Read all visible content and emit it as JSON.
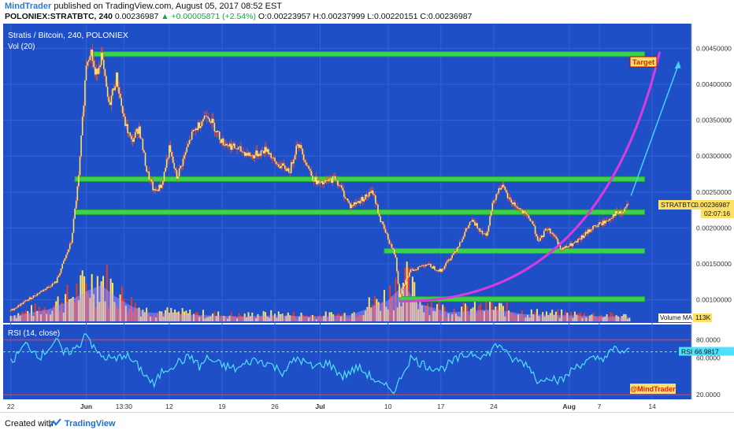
{
  "header": {
    "author": "MindTrader",
    "published": "published on TradingView.com, August 05, 2017 08:52 EST",
    "symbol_line": "POLONIEX:STRATBTC, 240",
    "last": "0.00236987",
    "change": "+0.00005871 (+2.54%)",
    "ohlc": "O:0.00223957 H:0.00237999 L:0.00220151 C:0.00236987"
  },
  "chart_data": {
    "type": "candlestick",
    "title": "Stratis / Bitcoin, 240, POLONIEX",
    "volume_label": "Vol (20)",
    "price_axis": {
      "ylim": [
        0.0007,
        0.0048
      ],
      "ticks": [
        "0.00450000",
        "0.00400000",
        "0.00350000",
        "0.00300000",
        "0.00250000",
        "0.00200000",
        "0.00150000",
        "0.00100000"
      ],
      "tick_values": [
        0.0045,
        0.004,
        0.0035,
        0.003,
        0.0025,
        0.002,
        0.0015,
        0.001
      ]
    },
    "x_axis": {
      "ticks": [
        "22",
        "Jun",
        "13:30",
        "12",
        "19",
        "26",
        "Jul",
        "10",
        "17",
        "24",
        "Aug",
        "7",
        "14"
      ],
      "tick_days": [
        0,
        10,
        15,
        21,
        28,
        35,
        41,
        50,
        57,
        64,
        74,
        78,
        85
      ]
    },
    "price_path": [
      [
        0,
        0.00085
      ],
      [
        3,
        0.00105
      ],
      [
        6,
        0.00125
      ],
      [
        8,
        0.0018
      ],
      [
        9,
        0.0027
      ],
      [
        10,
        0.0043
      ],
      [
        10.6,
        0.0045
      ],
      [
        11.2,
        0.0041
      ],
      [
        12,
        0.0044
      ],
      [
        13,
        0.0037
      ],
      [
        14,
        0.0041
      ],
      [
        15,
        0.0035
      ],
      [
        16,
        0.0032
      ],
      [
        17,
        0.0034
      ],
      [
        18,
        0.0028
      ],
      [
        19,
        0.0025
      ],
      [
        20,
        0.0026
      ],
      [
        21,
        0.0031
      ],
      [
        22,
        0.0027
      ],
      [
        24,
        0.0033
      ],
      [
        26,
        0.0036
      ],
      [
        28,
        0.0032
      ],
      [
        30,
        0.0031
      ],
      [
        32,
        0.003
      ],
      [
        34,
        0.0031
      ],
      [
        35,
        0.0029
      ],
      [
        37,
        0.0028
      ],
      [
        38,
        0.0032
      ],
      [
        40,
        0.0027
      ],
      [
        41,
        0.0026
      ],
      [
        43,
        0.0027
      ],
      [
        45,
        0.0023
      ],
      [
        48,
        0.0025
      ],
      [
        49,
        0.0021
      ],
      [
        50,
        0.00185
      ],
      [
        51,
        0.0016
      ],
      [
        51.5,
        0.00105
      ],
      [
        52,
        0.0012
      ],
      [
        53,
        0.0014
      ],
      [
        55,
        0.0015
      ],
      [
        57,
        0.0014
      ],
      [
        59,
        0.0017
      ],
      [
        61,
        0.0021
      ],
      [
        63,
        0.0019
      ],
      [
        64,
        0.0024
      ],
      [
        65,
        0.0026
      ],
      [
        66,
        0.0024
      ],
      [
        68,
        0.0022
      ],
      [
        69,
        0.0021
      ],
      [
        70,
        0.0018
      ],
      [
        71,
        0.002
      ],
      [
        72,
        0.0019
      ],
      [
        73,
        0.0017
      ],
      [
        75,
        0.0018
      ],
      [
        77,
        0.002
      ],
      [
        79,
        0.0021
      ],
      [
        80,
        0.0022
      ],
      [
        81,
        0.0022
      ],
      [
        82,
        0.00237
      ]
    ],
    "volume_path": [
      [
        0,
        0.08
      ],
      [
        5,
        0.2
      ],
      [
        8,
        0.35
      ],
      [
        10,
        0.5
      ],
      [
        12,
        0.6
      ],
      [
        14,
        0.4
      ],
      [
        16,
        0.25
      ],
      [
        18,
        0.15
      ],
      [
        22,
        0.12
      ],
      [
        26,
        0.1
      ],
      [
        30,
        0.08
      ],
      [
        35,
        0.1
      ],
      [
        40,
        0.08
      ],
      [
        45,
        0.1
      ],
      [
        50,
        0.35
      ],
      [
        52,
        0.6
      ],
      [
        54,
        0.3
      ],
      [
        58,
        0.15
      ],
      [
        64,
        0.2
      ],
      [
        68,
        0.12
      ],
      [
        74,
        0.1
      ],
      [
        80,
        0.08
      ],
      [
        82,
        0.07
      ]
    ],
    "volume_ma": "113K",
    "horizontal_levels": [
      0.00442,
      0.00268,
      0.00222,
      0.00168,
      0.00101
    ],
    "last_price_label": "STRATBTC",
    "last_price": "0.00236987",
    "countdown": "02:07:16",
    "annotations": {
      "target_label": "Target",
      "volume_ma_label": "Volume MA"
    },
    "rsi": {
      "title": "RSI (14, close)",
      "ylim": [
        15,
        95
      ],
      "ticks": [
        "80.0000",
        "60.0000",
        "20.0000"
      ],
      "tick_values": [
        80,
        60,
        20
      ],
      "upper": 80,
      "lower": 20,
      "value_label": "RSI",
      "value": "66.9817",
      "path": [
        [
          0,
          55
        ],
        [
          2,
          75
        ],
        [
          4,
          62
        ],
        [
          6,
          80
        ],
        [
          7,
          65
        ],
        [
          9,
          72
        ],
        [
          10,
          90
        ],
        [
          11,
          70
        ],
        [
          12,
          62
        ],
        [
          14,
          58
        ],
        [
          15,
          65
        ],
        [
          17,
          50
        ],
        [
          18,
          40
        ],
        [
          19,
          30
        ],
        [
          20,
          45
        ],
        [
          22,
          55
        ],
        [
          24,
          62
        ],
        [
          25,
          50
        ],
        [
          26,
          60
        ],
        [
          28,
          52
        ],
        [
          30,
          48
        ],
        [
          32,
          58
        ],
        [
          34,
          55
        ],
        [
          36,
          45
        ],
        [
          38,
          60
        ],
        [
          40,
          50
        ],
        [
          42,
          55
        ],
        [
          44,
          40
        ],
        [
          46,
          50
        ],
        [
          48,
          38
        ],
        [
          49,
          30
        ],
        [
          50,
          28
        ],
        [
          51,
          25
        ],
        [
          52,
          45
        ],
        [
          53,
          60
        ],
        [
          55,
          52
        ],
        [
          57,
          48
        ],
        [
          59,
          58
        ],
        [
          61,
          66
        ],
        [
          63,
          62
        ],
        [
          64,
          72
        ],
        [
          65,
          75
        ],
        [
          66,
          60
        ],
        [
          68,
          55
        ],
        [
          69,
          48
        ],
        [
          70,
          32
        ],
        [
          71,
          42
        ],
        [
          72,
          38
        ],
        [
          73,
          35
        ],
        [
          75,
          52
        ],
        [
          77,
          58
        ],
        [
          79,
          62
        ],
        [
          80,
          70
        ],
        [
          81,
          67
        ],
        [
          82,
          67
        ]
      ]
    },
    "watermark": "@MindTrader"
  },
  "footer": {
    "created_with": "Created with",
    "brand": "TradingView"
  },
  "colors": {
    "panel_bg": "#1f4fc7",
    "level": "#39d44b",
    "candle": "#ffe066",
    "wick": "#ff4b2b",
    "vol_up": "#ffe066",
    "vol_down": "#e43b2a",
    "rsi_line": "#4ee0ff",
    "rsi_band": "#e43b2a",
    "arrow_target": "#43d2ff",
    "curve": "#d93bdf"
  }
}
